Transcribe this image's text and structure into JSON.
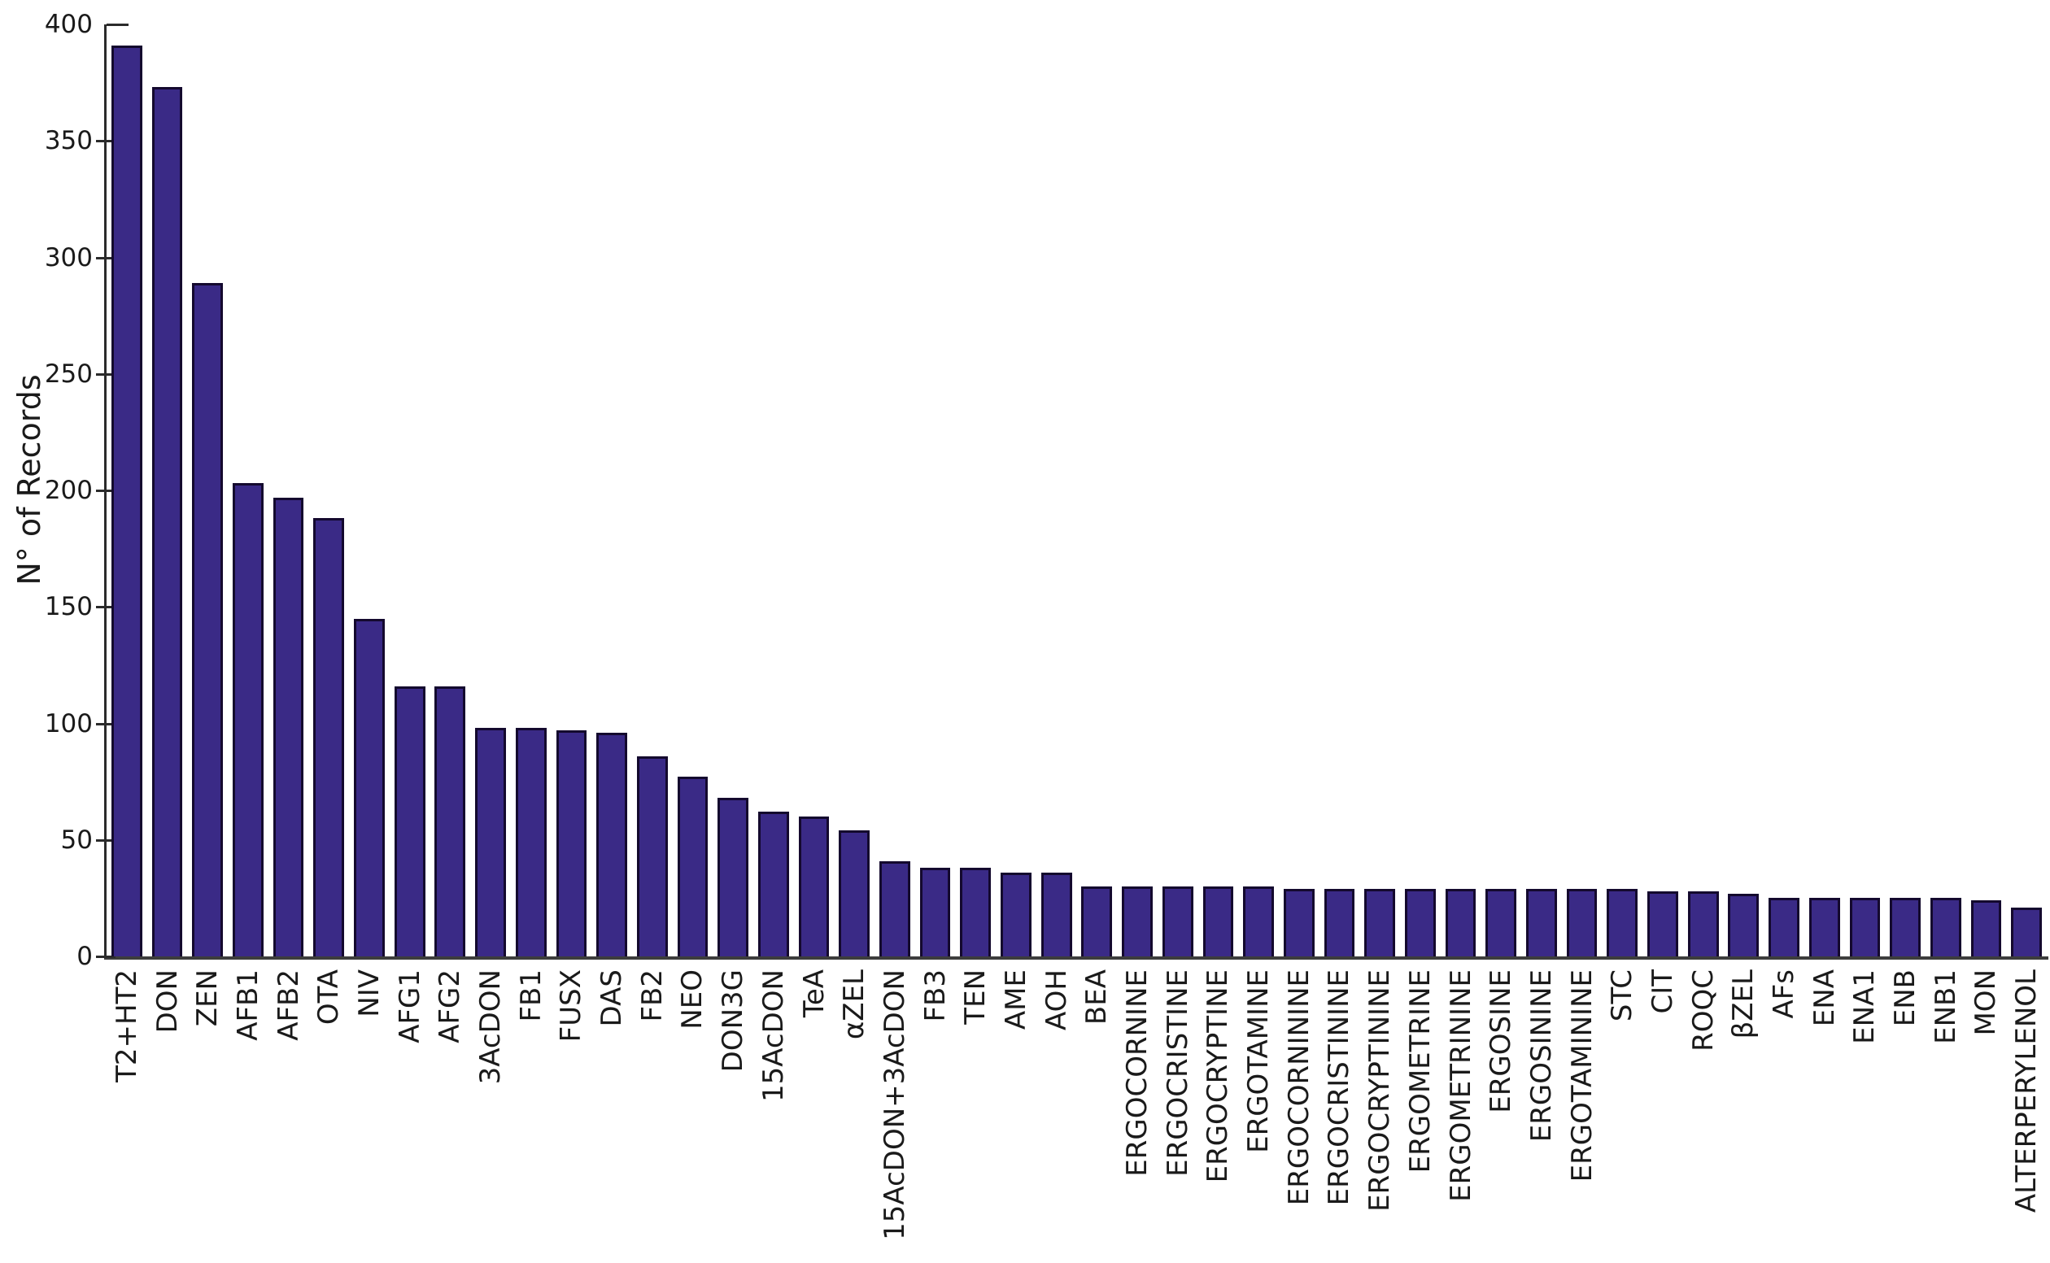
{
  "figure": {
    "background_color": "#ffffff"
  },
  "chart_data": {
    "type": "bar",
    "title": "",
    "xlabel": "",
    "ylabel": "N° of Records",
    "ylim": [
      0,
      400
    ],
    "yticks": [
      0,
      50,
      100,
      150,
      200,
      250,
      300,
      350,
      400
    ],
    "grid": false,
    "legend_position": "none",
    "bar_color": "#3a2a86",
    "bar_edge_color": "#14092e",
    "axis_color": "#2b2b2b",
    "text_color": "#1a1a1a",
    "categories": [
      "T2+HT2",
      "DON",
      "ZEN",
      "AFB1",
      "AFB2",
      "OTA",
      "NIV",
      "AFG1",
      "AFG2",
      "3AcDON",
      "FB1",
      "FUSX",
      "DAS",
      "FB2",
      "NEO",
      "DON3G",
      "15AcDON",
      "TeA",
      "αZEL",
      "15AcDON+3AcDON",
      "FB3",
      "TEN",
      "AME",
      "AOH",
      "BEA",
      "ERGOCORNINE",
      "ERGOCRISTINE",
      "ERGOCRYPTINE",
      "ERGOTAMINE",
      "ERGOCORNININE",
      "ERGOCRISTININE",
      "ERGOCRYPTININE",
      "ERGOMETRINE",
      "ERGOMETRININE",
      "ERGOSINE",
      "ERGOSININE",
      "ERGOTAMININE",
      "STC",
      "CIT",
      "ROQC",
      "βZEL",
      "AFs",
      "ENA",
      "ENA1",
      "ENB",
      "ENB1",
      "MON",
      "ALTERPERYLENOL"
    ],
    "values": [
      391,
      373,
      289,
      203,
      197,
      188,
      145,
      116,
      116,
      98,
      98,
      97,
      96,
      86,
      77,
      68,
      62,
      60,
      54,
      41,
      38,
      38,
      36,
      36,
      30,
      30,
      30,
      30,
      30,
      29,
      29,
      29,
      29,
      29,
      29,
      29,
      29,
      29,
      28,
      28,
      27,
      25,
      25,
      25,
      25,
      25,
      24,
      21
    ]
  }
}
